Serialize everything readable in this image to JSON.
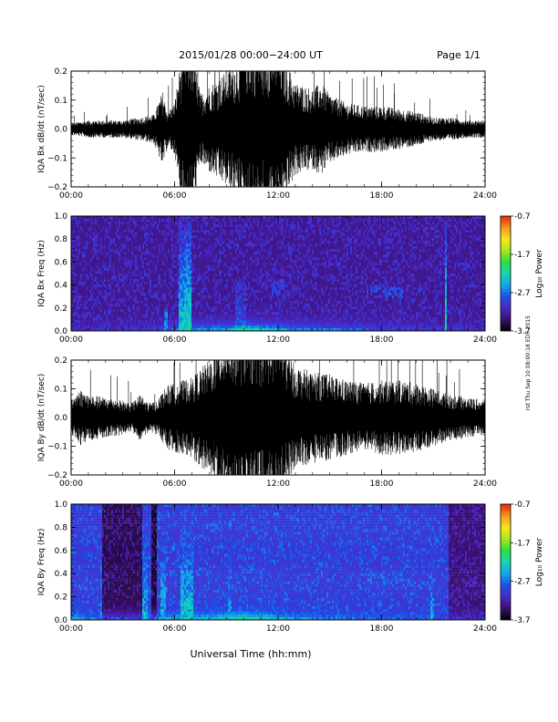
{
  "header": {
    "title": "2015/01/28  00:00−24:00 UT",
    "page": "Page 1/1"
  },
  "footer": {
    "xlabel": "Universal Time (hh:mm)"
  },
  "side_note": "rst Thu Sep 10 08:00:18 EDT 2015",
  "colorbar": {
    "label": "Log₁₀ Power",
    "ticks": [
      "-0.7",
      "-1.7",
      "-2.7",
      "-3.7"
    ],
    "tick_values": [
      -0.7,
      -1.7,
      -2.7,
      -3.7
    ],
    "range": [
      -3.7,
      -0.7
    ],
    "colormap": [
      "#000000",
      "#3b0f6e",
      "#4a28c8",
      "#1f4ee8",
      "#10a8e8",
      "#10d8b0",
      "#28e040",
      "#a8e81c",
      "#f8e818",
      "#f89818",
      "#f02010"
    ]
  },
  "chart_data": [
    {
      "type": "line",
      "ylabel": "IQA Bx dB/dt (nT/sec)",
      "ylim": [
        -0.2,
        0.2
      ],
      "yticks": [
        "0.2",
        "0.1",
        "0.0",
        "−0.1",
        "−0.2"
      ],
      "ytick_values": [
        0.2,
        0.1,
        0.0,
        -0.1,
        -0.2
      ],
      "xlim": [
        0,
        24
      ],
      "xticks": [
        "00:00",
        "06:00",
        "12:00",
        "18:00",
        "24:00"
      ],
      "xtick_values": [
        0,
        6,
        12,
        18,
        24
      ],
      "envelope": {
        "x": [
          0,
          1,
          2,
          3,
          4,
          4.8,
          5.3,
          5.6,
          6,
          6.5,
          6.7,
          7,
          7.5,
          8,
          9,
          9.8,
          10,
          11,
          11.5,
          12,
          13,
          14,
          14.5,
          15,
          16,
          17,
          18,
          19,
          20,
          21,
          22,
          23,
          24
        ],
        "amp": [
          0.02,
          0.03,
          0.03,
          0.03,
          0.04,
          0.05,
          0.13,
          0.06,
          0.09,
          0.3,
          0.3,
          0.3,
          0.12,
          0.15,
          0.2,
          0.25,
          0.3,
          0.3,
          0.3,
          0.3,
          0.16,
          0.14,
          0.16,
          0.12,
          0.09,
          0.08,
          0.08,
          0.07,
          0.06,
          0.04,
          0.04,
          0.03,
          0.03
        ]
      }
    },
    {
      "type": "heatmap",
      "ylabel": "IQA Bx Freq (Hz)",
      "ylim": [
        0,
        1.0
      ],
      "yticks": [
        "1.0",
        "0.8",
        "0.6",
        "0.4",
        "0.2",
        "0.0"
      ],
      "ytick_values": [
        1.0,
        0.8,
        0.6,
        0.4,
        0.2,
        0.0
      ],
      "xlim": [
        0,
        24
      ],
      "xticks": [
        "00:00",
        "06:00",
        "12:00",
        "18:00",
        "24:00"
      ],
      "xtick_values": [
        0,
        6,
        12,
        18,
        24
      ],
      "zlim": [
        -3.7,
        -0.7
      ],
      "background_level": -3.3,
      "low_freq_band": {
        "x": [
          0,
          3,
          5,
          6,
          7,
          8,
          9,
          10,
          11,
          12,
          13,
          14,
          15,
          16,
          18,
          20,
          22,
          24
        ],
        "level": [
          -3.1,
          -3.0,
          -2.9,
          -2.5,
          -2.3,
          -2.3,
          -2.2,
          -1.7,
          -1.9,
          -2.2,
          -2.4,
          -2.5,
          -2.5,
          -2.6,
          -2.8,
          -2.9,
          -3.0,
          -3.1
        ]
      },
      "vertical_bursts": [
        {
          "x": 5.5,
          "width": 0.15,
          "level": -2.6,
          "fmax": 0.2
        },
        {
          "x": 6.4,
          "width": 0.15,
          "level": -2.3,
          "fmax": 0.95
        },
        {
          "x": 6.8,
          "width": 0.2,
          "level": -2.2,
          "fmax": 1.0
        },
        {
          "x": 9.8,
          "width": 0.3,
          "level": -2.8,
          "fmax": 0.4
        },
        {
          "x": 21.7,
          "width": 0.06,
          "level": -2.2,
          "fmax": 0.95
        }
      ],
      "patches": [
        {
          "x0": 17.3,
          "x1": 19.2,
          "f0": 0.28,
          "f1": 0.4,
          "level": -2.9
        },
        {
          "x0": 11.6,
          "x1": 12.4,
          "f0": 0.3,
          "f1": 0.45,
          "level": -2.9
        }
      ]
    },
    {
      "type": "line",
      "ylabel": "IQA By dB/dt (nT/sec)",
      "ylim": [
        -0.2,
        0.2
      ],
      "yticks": [
        "0.2",
        "0.1",
        "0.0",
        "−0.1",
        "−0.2"
      ],
      "ytick_values": [
        0.2,
        0.1,
        0.0,
        -0.1,
        -0.2
      ],
      "xlim": [
        0,
        24
      ],
      "xticks": [
        "00:00",
        "06:00",
        "12:00",
        "18:00",
        "24:00"
      ],
      "xtick_values": [
        0,
        6,
        12,
        18,
        24
      ],
      "envelope": {
        "x": [
          0,
          0.5,
          1,
          2,
          3,
          3.5,
          4,
          4.5,
          5,
          5.5,
          6,
          7,
          8,
          9,
          10,
          11,
          12,
          13,
          14,
          15,
          16,
          17,
          18,
          19,
          20,
          21,
          22,
          23,
          24
        ],
        "amp": [
          0.06,
          0.1,
          0.08,
          0.07,
          0.06,
          0.05,
          0.08,
          0.05,
          0.06,
          0.11,
          0.12,
          0.14,
          0.2,
          0.3,
          0.3,
          0.3,
          0.3,
          0.18,
          0.16,
          0.15,
          0.13,
          0.12,
          0.13,
          0.13,
          0.12,
          0.1,
          0.08,
          0.07,
          0.06
        ]
      }
    },
    {
      "type": "heatmap",
      "ylabel": "IQA By Freq (Hz)",
      "ylim": [
        0,
        1.0
      ],
      "yticks": [
        "1.0",
        "0.8",
        "0.6",
        "0.4",
        "0.2",
        "0.0"
      ],
      "ytick_values": [
        1.0,
        0.8,
        0.6,
        0.4,
        0.2,
        0.0
      ],
      "xlim": [
        0,
        24
      ],
      "xticks": [
        "00:00",
        "06:00",
        "12:00",
        "18:00",
        "24:00"
      ],
      "xtick_values": [
        0,
        6,
        12,
        18,
        24
      ],
      "zlim": [
        -3.7,
        -0.7
      ],
      "background_level": -3.0,
      "low_freq_band": {
        "x": [
          0,
          2,
          4,
          5,
          6,
          7,
          8,
          9,
          10,
          11,
          12,
          13,
          14,
          16,
          18,
          20,
          22,
          24
        ],
        "level": [
          -2.3,
          -2.7,
          -2.7,
          -2.5,
          -2.3,
          -2.2,
          -2.2,
          -2.0,
          -1.8,
          -2.0,
          -2.2,
          -2.4,
          -2.5,
          -2.6,
          -2.7,
          -2.8,
          -2.9,
          -3.0
        ]
      },
      "dark_bands": [
        {
          "x0": 1.8,
          "x1": 4.1,
          "level": -3.5
        },
        {
          "x0": 4.6,
          "x1": 5.0,
          "level": -3.6
        },
        {
          "x0": 21.9,
          "x1": 24.0,
          "level": -3.4
        }
      ],
      "vertical_bursts": [
        {
          "x": 1.75,
          "width": 0.1,
          "level": -2.6,
          "fmax": 1.0
        },
        {
          "x": 4.3,
          "width": 0.15,
          "level": -2.4,
          "fmax": 1.0
        },
        {
          "x": 5.3,
          "width": 0.15,
          "level": -2.4,
          "fmax": 1.0
        },
        {
          "x": 6.7,
          "width": 0.35,
          "level": -2.3,
          "fmax": 1.0
        },
        {
          "x": 9.2,
          "width": 0.15,
          "level": -2.5,
          "fmax": 1.0
        },
        {
          "x": 20.9,
          "width": 0.1,
          "level": -2.5,
          "fmax": 1.0
        }
      ],
      "patches": [
        {
          "x0": 17.0,
          "x1": 19.5,
          "f0": 0.3,
          "f1": 0.4,
          "level": -2.8
        }
      ]
    }
  ]
}
